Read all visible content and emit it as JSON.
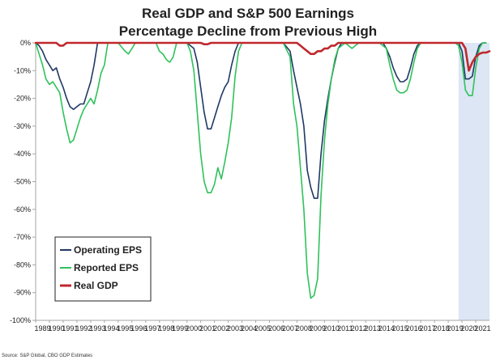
{
  "chart_data": {
    "type": "line",
    "title": "Real GDP and S&P 500 Earnings",
    "subtitle": "Percentage Decline from Previous High",
    "xlabel": "",
    "ylabel": "",
    "xlim": [
      1989,
      2022
    ],
    "ylim": [
      -100,
      0
    ],
    "y_ticks": [
      0,
      -10,
      -20,
      -30,
      -40,
      -50,
      -60,
      -70,
      -80,
      -90,
      -100
    ],
    "y_tick_labels": [
      "0%",
      "-10%",
      "-20%",
      "-30%",
      "-40%",
      "-50%",
      "-60%",
      "-70%",
      "-80%",
      "-90%",
      "-100%"
    ],
    "x_tick_labels": [
      "1989",
      "1990",
      "1991",
      "1992",
      "1993",
      "1994",
      "1995",
      "1996",
      "1997",
      "1998",
      "1999",
      "2000",
      "2001",
      "2002",
      "2003",
      "2004",
      "2005",
      "2006",
      "2007",
      "2008",
      "2009",
      "2010",
      "2011",
      "2012",
      "2013",
      "2014",
      "2015",
      "2016",
      "2017",
      "2018",
      "2019",
      "2020",
      "2021"
    ],
    "grid": false,
    "legend_position": "bottom-left",
    "shaded_region": {
      "x_start": 2019.75,
      "x_end": 2022.0,
      "color": "#dce6f4"
    },
    "series": [
      {
        "name": "Operating EPS",
        "color": "#1f3864",
        "points": [
          [
            1989.0,
            0
          ],
          [
            1989.25,
            -1
          ],
          [
            1989.5,
            -3
          ],
          [
            1989.75,
            -6
          ],
          [
            1990.0,
            -8
          ],
          [
            1990.25,
            -10
          ],
          [
            1990.5,
            -9
          ],
          [
            1990.75,
            -13
          ],
          [
            1991.0,
            -16
          ],
          [
            1991.25,
            -20
          ],
          [
            1991.5,
            -23
          ],
          [
            1991.75,
            -24
          ],
          [
            1992.0,
            -23
          ],
          [
            1992.25,
            -22
          ],
          [
            1992.5,
            -22
          ],
          [
            1992.75,
            -18
          ],
          [
            1993.0,
            -14
          ],
          [
            1993.25,
            -8
          ],
          [
            1993.5,
            0
          ],
          [
            1993.75,
            0
          ],
          [
            1994.0,
            0
          ],
          [
            2000.0,
            0
          ],
          [
            2000.5,
            -2
          ],
          [
            2000.75,
            -7
          ],
          [
            2001.0,
            -16
          ],
          [
            2001.25,
            -25
          ],
          [
            2001.5,
            -31
          ],
          [
            2001.75,
            -31
          ],
          [
            2002.0,
            -27
          ],
          [
            2002.25,
            -23
          ],
          [
            2002.5,
            -19
          ],
          [
            2002.75,
            -16
          ],
          [
            2003.0,
            -14
          ],
          [
            2003.25,
            -8
          ],
          [
            2003.5,
            -3
          ],
          [
            2003.75,
            0
          ],
          [
            2004.0,
            0
          ],
          [
            2007.0,
            0
          ],
          [
            2007.5,
            -3
          ],
          [
            2007.75,
            -10
          ],
          [
            2008.0,
            -16
          ],
          [
            2008.25,
            -22
          ],
          [
            2008.5,
            -30
          ],
          [
            2008.75,
            -46
          ],
          [
            2009.0,
            -52
          ],
          [
            2009.25,
            -56
          ],
          [
            2009.5,
            -56
          ],
          [
            2009.75,
            -40
          ],
          [
            2010.0,
            -28
          ],
          [
            2010.25,
            -20
          ],
          [
            2010.5,
            -13
          ],
          [
            2010.75,
            -7
          ],
          [
            2011.0,
            -2
          ],
          [
            2011.25,
            0
          ],
          [
            2011.5,
            0
          ],
          [
            2014.25,
            0
          ],
          [
            2014.5,
            -2
          ],
          [
            2014.75,
            -5
          ],
          [
            2015.0,
            -9
          ],
          [
            2015.25,
            -12
          ],
          [
            2015.5,
            -14
          ],
          [
            2015.75,
            -14
          ],
          [
            2016.0,
            -13
          ],
          [
            2016.25,
            -9
          ],
          [
            2016.5,
            -4
          ],
          [
            2016.75,
            -1
          ],
          [
            2017.0,
            0
          ],
          [
            2019.75,
            0
          ],
          [
            2020.0,
            -3
          ],
          [
            2020.25,
            -13
          ],
          [
            2020.5,
            -13
          ],
          [
            2020.75,
            -12
          ],
          [
            2021.0,
            -5
          ],
          [
            2021.25,
            -1
          ],
          [
            2021.5,
            0
          ],
          [
            2021.75,
            0
          ]
        ]
      },
      {
        "name": "Reported EPS",
        "color": "#2ec25a",
        "points": [
          [
            1989.0,
            0
          ],
          [
            1989.25,
            -4
          ],
          [
            1989.5,
            -8
          ],
          [
            1989.75,
            -13
          ],
          [
            1990.0,
            -15
          ],
          [
            1990.25,
            -14
          ],
          [
            1990.5,
            -16
          ],
          [
            1990.75,
            -18
          ],
          [
            1991.0,
            -25
          ],
          [
            1991.25,
            -31
          ],
          [
            1991.5,
            -36
          ],
          [
            1991.75,
            -35
          ],
          [
            1992.0,
            -31
          ],
          [
            1992.25,
            -27
          ],
          [
            1992.5,
            -24
          ],
          [
            1992.75,
            -22
          ],
          [
            1993.0,
            -20
          ],
          [
            1993.25,
            -22
          ],
          [
            1993.5,
            -17
          ],
          [
            1993.75,
            -11
          ],
          [
            1994.0,
            -8
          ],
          [
            1994.25,
            0
          ],
          [
            1995.0,
            0
          ],
          [
            1995.5,
            -3
          ],
          [
            1995.75,
            -4
          ],
          [
            1996.0,
            -2
          ],
          [
            1996.25,
            0
          ],
          [
            1997.75,
            0
          ],
          [
            1998.0,
            -3
          ],
          [
            1998.25,
            -4
          ],
          [
            1998.5,
            -6
          ],
          [
            1998.75,
            -7
          ],
          [
            1999.0,
            -5
          ],
          [
            1999.25,
            0
          ],
          [
            1999.5,
            0
          ],
          [
            2000.0,
            0
          ],
          [
            2000.25,
            -3
          ],
          [
            2000.5,
            -10
          ],
          [
            2000.75,
            -25
          ],
          [
            2001.0,
            -40
          ],
          [
            2001.25,
            -50
          ],
          [
            2001.5,
            -54
          ],
          [
            2001.75,
            -54
          ],
          [
            2002.0,
            -51
          ],
          [
            2002.25,
            -45
          ],
          [
            2002.5,
            -49
          ],
          [
            2002.75,
            -43
          ],
          [
            2003.0,
            -36
          ],
          [
            2003.25,
            -27
          ],
          [
            2003.5,
            -12
          ],
          [
            2003.75,
            -3
          ],
          [
            2004.0,
            0
          ],
          [
            2007.0,
            0
          ],
          [
            2007.5,
            -5
          ],
          [
            2007.75,
            -22
          ],
          [
            2008.0,
            -30
          ],
          [
            2008.25,
            -45
          ],
          [
            2008.5,
            -60
          ],
          [
            2008.75,
            -83
          ],
          [
            2009.0,
            -92
          ],
          [
            2009.25,
            -91
          ],
          [
            2009.5,
            -85
          ],
          [
            2009.75,
            -55
          ],
          [
            2010.0,
            -35
          ],
          [
            2010.25,
            -22
          ],
          [
            2010.5,
            -13
          ],
          [
            2010.75,
            -6
          ],
          [
            2011.0,
            -2
          ],
          [
            2011.5,
            0
          ],
          [
            2012.0,
            -2
          ],
          [
            2012.25,
            -1
          ],
          [
            2012.5,
            0
          ],
          [
            2014.0,
            0
          ],
          [
            2014.5,
            -2
          ],
          [
            2014.75,
            -8
          ],
          [
            2015.0,
            -13
          ],
          [
            2015.25,
            -17
          ],
          [
            2015.5,
            -18
          ],
          [
            2015.75,
            -18
          ],
          [
            2016.0,
            -17
          ],
          [
            2016.25,
            -13
          ],
          [
            2016.5,
            -7
          ],
          [
            2016.75,
            -2
          ],
          [
            2017.0,
            0
          ],
          [
            2019.5,
            0
          ],
          [
            2019.75,
            -1
          ],
          [
            2020.0,
            -7
          ],
          [
            2020.25,
            -17
          ],
          [
            2020.5,
            -19
          ],
          [
            2020.75,
            -19
          ],
          [
            2021.0,
            -9
          ],
          [
            2021.25,
            -2
          ],
          [
            2021.5,
            0
          ],
          [
            2021.75,
            0
          ]
        ]
      },
      {
        "name": "Real GDP",
        "color": "#c0282d",
        "points": [
          [
            1989.0,
            0
          ],
          [
            1990.5,
            0
          ],
          [
            1990.75,
            -1
          ],
          [
            1991.0,
            -1
          ],
          [
            1991.25,
            0
          ],
          [
            2001.0,
            0
          ],
          [
            2001.25,
            -0.5
          ],
          [
            2001.5,
            -0.5
          ],
          [
            2001.75,
            0
          ],
          [
            2008.0,
            0
          ],
          [
            2008.25,
            -1
          ],
          [
            2008.5,
            -2
          ],
          [
            2008.75,
            -3
          ],
          [
            2009.0,
            -4
          ],
          [
            2009.25,
            -4
          ],
          [
            2009.5,
            -3
          ],
          [
            2009.75,
            -3
          ],
          [
            2010.0,
            -2
          ],
          [
            2010.25,
            -2
          ],
          [
            2010.5,
            -1
          ],
          [
            2010.75,
            -1
          ],
          [
            2011.0,
            0
          ],
          [
            2020.0,
            0
          ],
          [
            2020.25,
            -2
          ],
          [
            2020.5,
            -10
          ],
          [
            2020.75,
            -7
          ],
          [
            2021.0,
            -5
          ],
          [
            2021.25,
            -4
          ],
          [
            2021.5,
            -3.5
          ],
          [
            2021.75,
            -3.5
          ],
          [
            2022.0,
            -3
          ]
        ]
      }
    ],
    "source": "Source: S&P Global, CBO GDP Estimates"
  }
}
